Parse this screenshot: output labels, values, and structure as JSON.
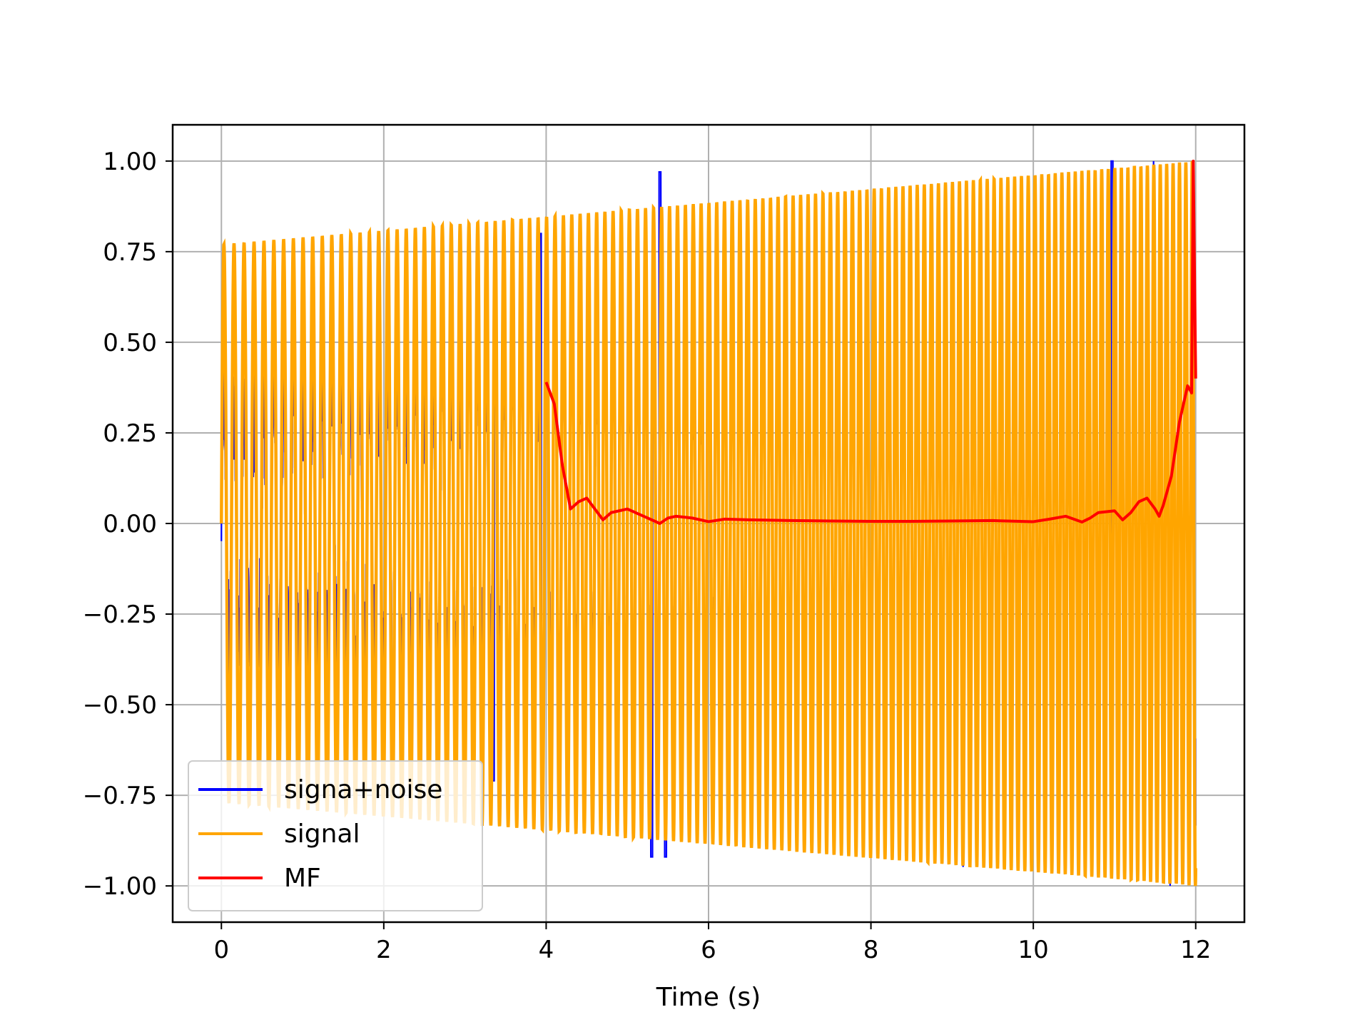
{
  "chart_data": {
    "type": "line",
    "title": "",
    "xlabel": "Time (s)",
    "ylabel": "",
    "xlim": [
      -0.6,
      12.6
    ],
    "ylim": [
      -1.1,
      1.1
    ],
    "grid": true,
    "legend_position": "lower-left",
    "x_ticks": [
      0,
      2,
      4,
      6,
      8,
      10,
      12
    ],
    "x_tick_labels": [
      "0",
      "2",
      "4",
      "6",
      "8",
      "10",
      "12"
    ],
    "y_ticks": [
      1.0,
      0.75,
      0.5,
      0.25,
      0.0,
      -0.25,
      -0.5,
      -0.75,
      -1.0
    ],
    "y_tick_labels": [
      "1.00",
      "0.75",
      "0.50",
      "0.25",
      "0.00",
      "−0.25",
      "−0.50",
      "−0.75",
      "−1.00"
    ],
    "series": [
      {
        "name": "signa+noise",
        "color": "#0000ff",
        "x_range": [
          0,
          12
        ],
        "envelope_start": 0.4,
        "envelope_end": 1.0,
        "peaks": [
          {
            "x": 5.4,
            "y": 0.97
          },
          {
            "x": 5.3,
            "y": -0.92
          },
          {
            "x": 5.47,
            "y": -0.92
          },
          {
            "x": 10.97,
            "y": 1.0
          },
          {
            "x": 3.93,
            "y": 0.8
          },
          {
            "x": 1.35,
            "y": 0.66
          },
          {
            "x": 3.35,
            "y": -0.71
          }
        ]
      },
      {
        "name": "signal",
        "color": "#ffa500",
        "x_range": [
          0,
          12
        ],
        "envelope_start": 0.77,
        "envelope_end": 1.0
      },
      {
        "name": "MF",
        "color": "#ff0000",
        "x": [
          4.0,
          4.1,
          4.2,
          4.3,
          4.4,
          4.5,
          4.6,
          4.7,
          4.8,
          5.0,
          5.2,
          5.4,
          5.5,
          5.6,
          5.8,
          6.0,
          6.2,
          6.5,
          7.0,
          7.5,
          8.0,
          8.5,
          9.0,
          9.5,
          10.0,
          10.2,
          10.4,
          10.6,
          10.7,
          10.8,
          11.0,
          11.1,
          11.2,
          11.3,
          11.4,
          11.5,
          11.55,
          11.6,
          11.7,
          11.8,
          11.9,
          11.95,
          11.97,
          12.0
        ],
        "y": [
          0.39,
          0.33,
          0.16,
          0.04,
          0.06,
          0.07,
          0.04,
          0.01,
          0.03,
          0.04,
          0.02,
          0.0,
          0.015,
          0.02,
          0.015,
          0.005,
          0.012,
          0.01,
          0.008,
          0.007,
          0.006,
          0.006,
          0.007,
          0.008,
          0.005,
          0.012,
          0.02,
          0.004,
          0.015,
          0.03,
          0.035,
          0.01,
          0.03,
          0.06,
          0.07,
          0.04,
          0.02,
          0.05,
          0.13,
          0.28,
          0.38,
          0.36,
          1.0,
          0.4
        ]
      }
    ]
  }
}
